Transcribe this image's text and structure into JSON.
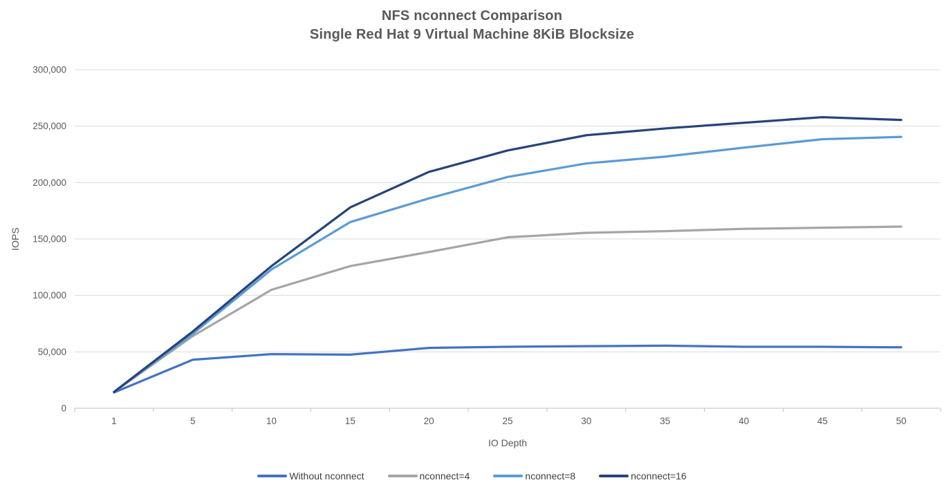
{
  "title": {
    "line1": "NFS nconnect Comparison",
    "line2": "Single Red Hat 9 Virtual Machine 8KiB Blocksize"
  },
  "chart_data": {
    "type": "line",
    "title": "NFS nconnect Comparison",
    "subtitle": "Single Red Hat 9 Virtual Machine 8KiB Blocksize",
    "xlabel": "IO Depth",
    "ylabel": "IOPS",
    "categories": [
      1,
      5,
      10,
      15,
      20,
      25,
      30,
      35,
      40,
      45,
      50
    ],
    "x_axis_type": "categorical",
    "ylim": [
      0,
      300000
    ],
    "y_ticks": [
      0,
      50000,
      100000,
      150000,
      200000,
      250000,
      300000
    ],
    "grid": "horizontal",
    "legend_position": "bottom",
    "series": [
      {
        "name": "Without nconnect",
        "color": "#4472C4",
        "values": [
          14000,
          43000,
          48000,
          47500,
          53500,
          54500,
          55000,
          55500,
          54500,
          54500,
          54000
        ]
      },
      {
        "name": "nconnect=4",
        "color": "#A5A5A5",
        "values": [
          14500,
          64000,
          105000,
          126000,
          138500,
          151500,
          155500,
          157000,
          159000,
          160000,
          161000
        ]
      },
      {
        "name": "nconnect=8",
        "color": "#5B9BD5",
        "values": [
          14500,
          66000,
          123000,
          165000,
          186000,
          205000,
          217000,
          223000,
          231000,
          238500,
          240500
        ]
      },
      {
        "name": "nconnect=16",
        "color": "#264478",
        "values": [
          14500,
          68000,
          126000,
          178000,
          209500,
          228500,
          242000,
          248000,
          253000,
          258000,
          255500
        ]
      }
    ]
  },
  "colors": {
    "text": "#595959",
    "gridline": "#D9D9D9",
    "axis": "#BFBFBF",
    "background": "#FFFFFF"
  }
}
